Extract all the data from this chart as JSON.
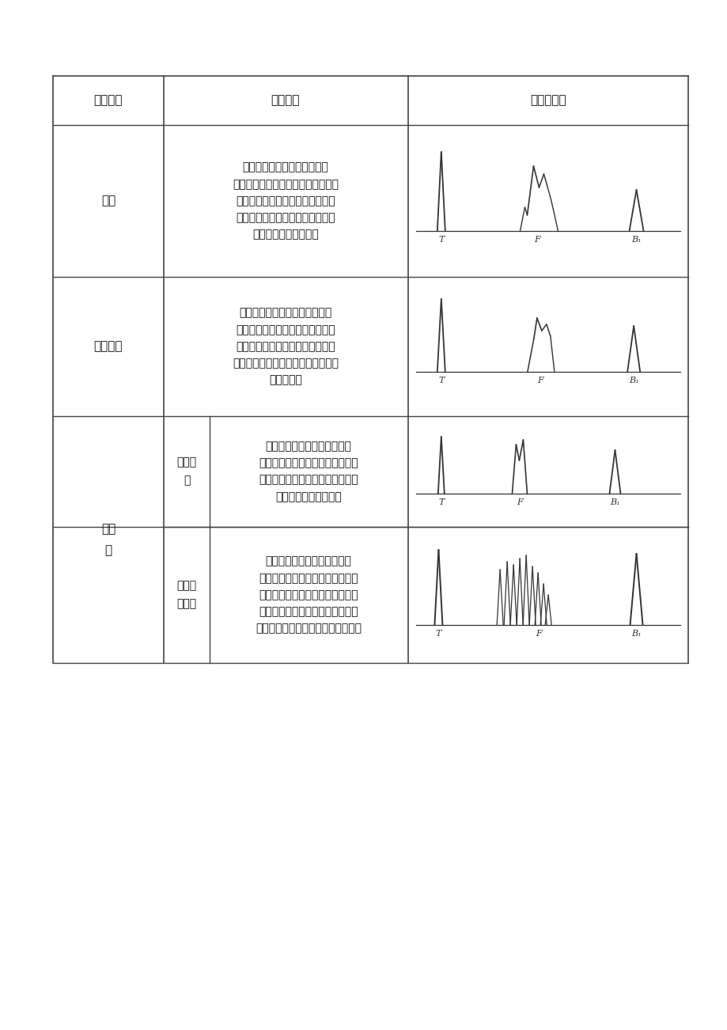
{
  "bg_color": "#ffffff",
  "header": [
    "缺陷名称",
    "波形特征",
    "典型波形图"
  ],
  "row_texts_col1": [
    "伤波反射强烈，波底宽大，成\n束状，在主伤波附近常伴有小伤波，\n对底波影响严重，常使底波消失，\n圆周各处伤波基本类似，缩孔常出\n现在冒口端或热节处。",
    "伤波幅度强，出现在工件心部，\n沿轴向探伤时伤波具有连续性，由\n于缩孔锻造变形，圆周各处伤波幅\n度差别较大，缺陷使底波严重衰减，\n甚至消失。",
    "单个夾渣伤波为单一脉冲或伴\n有小伤波的单个脉冲，波峰园酂不\n清晰，伤波幅度虽高，但对底波及\n其反射次数影响不大。",
    "分散性夾杂物，伤波为多个，\n有时呼现林状波，但波顶园酂不清\n晰，波形分枝，伤波较高，但对底\n波及底波多次反射次数影响较小。\n移动探头时，伤波变化比白点为快。"
  ],
  "row0_name": "缩孔",
  "row1_name": "缩孔残余",
  "row23_name": "夾杂\n物",
  "row2_sub": "单个夾\n渣",
  "row3_sub": "分散性\n夾杂物"
}
